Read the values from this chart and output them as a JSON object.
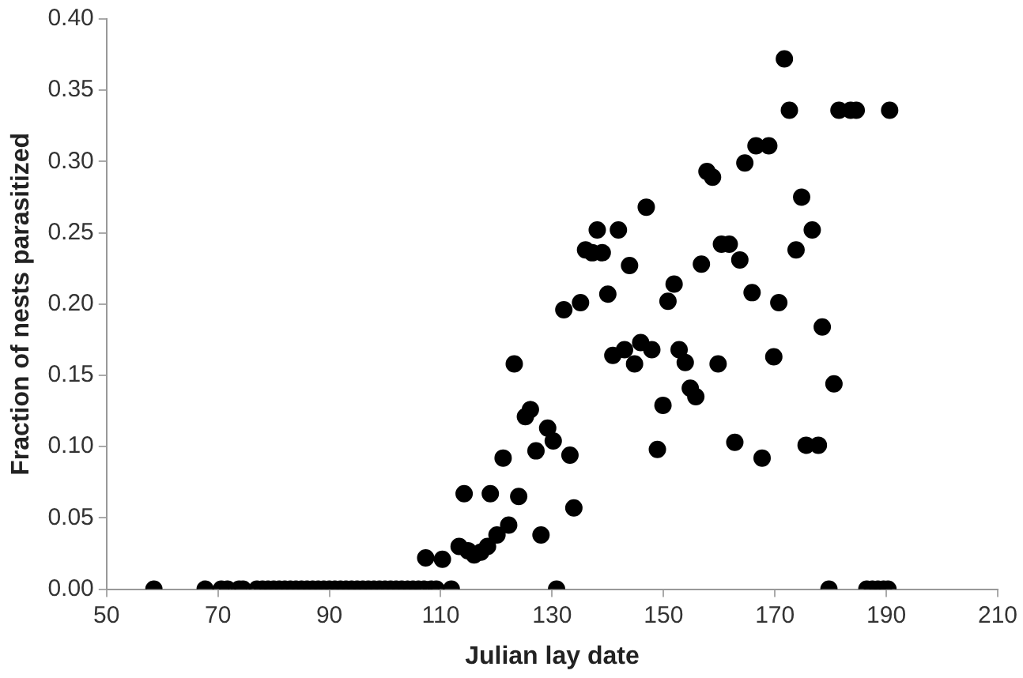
{
  "chart_data": {
    "type": "scatter",
    "xlabel": "Julian lay date",
    "ylabel": "Fraction of nests parasitized",
    "xlim": [
      50,
      210
    ],
    "xticks": [
      50,
      70,
      90,
      110,
      130,
      150,
      170,
      190,
      210
    ],
    "ylim": [
      0,
      0.4
    ],
    "yticks": [
      {
        "value": 0,
        "label": "0.00"
      },
      {
        "value": 0.05,
        "label": "0.05"
      },
      {
        "value": 0.1,
        "label": "0.10"
      },
      {
        "value": 0.15,
        "label": "0.15"
      },
      {
        "value": 0.2,
        "label": "0.20"
      },
      {
        "value": 0.25,
        "label": "0.25"
      },
      {
        "value": 0.3,
        "label": "0.30"
      },
      {
        "value": 0.35,
        "label": "0.35"
      },
      {
        "value": 0.4,
        "label": "0.40"
      }
    ],
    "grid": false,
    "legend": false,
    "marker": "circle",
    "series": [
      {
        "color": "#000000",
        "x": [
          58.5,
          67.7,
          70.6,
          71.7,
          73.8,
          74.5,
          77,
          78,
          79,
          80,
          81,
          82,
          83,
          84,
          85,
          86,
          87,
          88,
          89,
          90,
          91,
          92,
          93,
          94,
          95,
          96,
          97,
          98,
          99,
          100,
          101,
          102,
          103,
          104,
          105,
          106,
          107,
          108.3,
          109.2,
          111.9,
          130.8,
          179.7,
          186.5,
          187.5,
          188.5,
          189.5,
          190.3,
          107.3,
          110.3,
          113.3,
          114.2,
          114.9,
          116,
          117.2,
          118.4,
          118.9,
          120.1,
          122.2,
          124,
          128,
          121.2,
          127.1,
          133.2,
          133.9,
          123.2,
          125.2,
          126.1,
          129.2,
          130.2,
          132.1,
          135.1,
          140,
          136,
          137.2,
          139,
          143.9,
          140.9,
          143,
          144.8,
          145.9,
          147.9,
          149.9,
          148.9,
          150.8,
          151.9,
          152.8,
          153.9,
          154.8,
          155.8,
          156.8,
          159.8,
          162.8,
          163.7,
          165.9,
          160.4,
          161.8,
          146.9,
          138.1,
          141.9,
          157.8,
          158.8,
          164.6,
          166.6,
          171.7,
          172.6,
          181.5,
          183.6,
          184.6,
          190.6,
          168.9,
          174.8,
          176.7,
          173.8,
          170.7,
          178.5,
          169.8,
          180.6,
          167.7,
          175.6,
          177.8
        ],
        "values": [
          0,
          0,
          0,
          0,
          0,
          0,
          0,
          0,
          0,
          0,
          0,
          0,
          0,
          0,
          0,
          0,
          0,
          0,
          0,
          0,
          0,
          0,
          0,
          0,
          0,
          0,
          0,
          0,
          0,
          0,
          0,
          0,
          0,
          0,
          0,
          0,
          0,
          0,
          0,
          0,
          0,
          0,
          0,
          0,
          0,
          0,
          0,
          0.022,
          0.021,
          0.03,
          0.067,
          0.027,
          0.024,
          0.026,
          0.03,
          0.067,
          0.038,
          0.045,
          0.065,
          0.038,
          0.092,
          0.097,
          0.094,
          0.057,
          0.158,
          0.121,
          0.126,
          0.113,
          0.104,
          0.196,
          0.201,
          0.207,
          0.238,
          0.236,
          0.236,
          0.227,
          0.164,
          0.168,
          0.158,
          0.173,
          0.168,
          0.129,
          0.098,
          0.202,
          0.214,
          0.168,
          0.159,
          0.141,
          0.135,
          0.228,
          0.158,
          0.103,
          0.231,
          0.208,
          0.242,
          0.242,
          0.268,
          0.252,
          0.252,
          0.293,
          0.289,
          0.299,
          0.311,
          0.372,
          0.336,
          0.336,
          0.336,
          0.336,
          0.336,
          0.311,
          0.275,
          0.252,
          0.238,
          0.201,
          0.184,
          0.163,
          0.144,
          0.092,
          0.101,
          0.101
        ]
      }
    ]
  }
}
